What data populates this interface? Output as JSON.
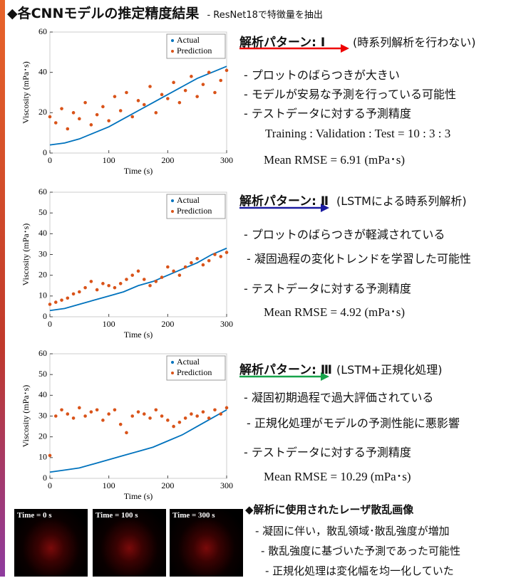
{
  "header": {
    "title": "◆各CNNモデルの推定精度結果",
    "subtitle": "- ResNet18で特徴量を抽出"
  },
  "sections": [
    {
      "heading": "解析パターン: Ⅰ",
      "note": "(時系列解析を行わない)",
      "bullets": [
        "- プロットのばらつきが大きい",
        "- モデルが安易な予測を行っている可能性",
        "- テストデータに対する予測精度"
      ],
      "details": [
        "Training : Validation : Test = 10 : 3 : 3",
        "Mean RMSE = 6.91 (mPa･s)"
      ]
    },
    {
      "heading": "解析パターン: Ⅱ",
      "note": "(LSTMによる時系列解析)",
      "bullets": [
        "- プロットのばらつきが軽減されている",
        "- 凝固過程の変化トレンドを学習した可能性",
        "- テストデータに対する予測精度"
      ],
      "details": [
        "Mean RMSE = 4.92 (mPa･s)"
      ]
    },
    {
      "heading": "解析パターン: Ⅲ",
      "note": "(LSTM+正規化処理)",
      "bullets": [
        "- 凝固初期過程で過大評価されている",
        "- 正規化処理がモデルの予測性能に悪影響",
        "- テストデータに対する予測精度"
      ],
      "details": [
        "Mean RMSE = 10.29 (mPa･s)"
      ]
    }
  ],
  "images": {
    "heading": "◆解析に使用されたレーザ散乱画像",
    "labels": [
      "Time = 0 s",
      "Time = 100 s",
      "Time = 300 s"
    ],
    "bullets": [
      "- 凝固に伴い，散乱領域･散乱強度が増加",
      "- 散乱強度に基づいた予測であった可能性",
      "- 正規化処理は変化幅を均一化していた"
    ]
  },
  "chart_data": [
    {
      "type": "scatter",
      "x_label": "Time (s)",
      "y_label": "Viscosity (mPa･s)",
      "xlim": [
        0,
        300
      ],
      "xticks": [
        0,
        100,
        200,
        300
      ],
      "ylim": [
        0,
        60
      ],
      "yticks": [
        0,
        20,
        40,
        60
      ],
      "legend": "upper right",
      "series": [
        {
          "name": "Actual",
          "color": "#0072bd",
          "mode": "line",
          "x": [
            0,
            25,
            50,
            75,
            100,
            125,
            150,
            175,
            200,
            225,
            250,
            275,
            300
          ],
          "values": [
            4,
            5,
            7,
            10,
            13,
            17,
            21,
            25,
            29,
            33,
            37,
            40,
            43
          ]
        },
        {
          "name": "Prediction",
          "color": "#d95319",
          "mode": "markers",
          "x": [
            0,
            10,
            20,
            30,
            40,
            50,
            60,
            70,
            80,
            90,
            100,
            110,
            120,
            130,
            140,
            150,
            160,
            170,
            180,
            190,
            200,
            210,
            220,
            230,
            240,
            250,
            260,
            270,
            280,
            290,
            300
          ],
          "values": [
            18,
            15,
            22,
            12,
            20,
            17,
            25,
            14,
            19,
            23,
            16,
            28,
            21,
            30,
            18,
            26,
            24,
            33,
            20,
            29,
            27,
            35,
            25,
            31,
            38,
            28,
            34,
            40,
            30,
            36,
            41
          ]
        }
      ]
    },
    {
      "type": "scatter",
      "x_label": "Time (s)",
      "y_label": "Viscosity (mPa･s)",
      "xlim": [
        0,
        300
      ],
      "xticks": [
        0,
        100,
        200,
        300
      ],
      "ylim": [
        0,
        60
      ],
      "yticks": [
        0,
        10,
        20,
        30,
        40,
        50,
        60
      ],
      "legend": "upper right",
      "series": [
        {
          "name": "Actual",
          "color": "#0072bd",
          "mode": "line",
          "x": [
            0,
            25,
            50,
            75,
            100,
            125,
            150,
            175,
            200,
            225,
            250,
            275,
            300
          ],
          "values": [
            3,
            4,
            6,
            8,
            10,
            12,
            15,
            17,
            20,
            23,
            26,
            30,
            33
          ]
        },
        {
          "name": "Prediction",
          "color": "#d95319",
          "mode": "markers",
          "x": [
            0,
            10,
            20,
            30,
            40,
            50,
            60,
            70,
            80,
            90,
            100,
            110,
            120,
            130,
            140,
            150,
            160,
            170,
            180,
            190,
            200,
            210,
            220,
            230,
            240,
            250,
            260,
            270,
            280,
            290,
            300
          ],
          "values": [
            6,
            7,
            8,
            9,
            11,
            12,
            14,
            17,
            13,
            16,
            15,
            14,
            16,
            18,
            20,
            22,
            18,
            15,
            17,
            19,
            24,
            22,
            20,
            24,
            26,
            28,
            25,
            27,
            30,
            29,
            31
          ]
        }
      ]
    },
    {
      "type": "scatter",
      "x_label": "Time (s)",
      "y_label": "Viscosity (mPa･s)",
      "xlim": [
        0,
        300
      ],
      "xticks": [
        0,
        100,
        200,
        300
      ],
      "ylim": [
        0,
        60
      ],
      "yticks": [
        0,
        10,
        20,
        30,
        40,
        50,
        60
      ],
      "legend": "upper right",
      "series": [
        {
          "name": "Actual",
          "color": "#0072bd",
          "mode": "line",
          "x": [
            0,
            25,
            50,
            75,
            100,
            125,
            150,
            175,
            200,
            225,
            250,
            275,
            300
          ],
          "values": [
            3,
            4,
            5,
            7,
            9,
            11,
            13,
            15,
            18,
            21,
            25,
            29,
            33
          ]
        },
        {
          "name": "Prediction",
          "color": "#d95319",
          "mode": "markers",
          "x": [
            0,
            10,
            20,
            30,
            40,
            50,
            60,
            70,
            80,
            90,
            100,
            110,
            120,
            130,
            140,
            150,
            160,
            170,
            180,
            190,
            200,
            210,
            220,
            230,
            240,
            250,
            260,
            270,
            280,
            290,
            300
          ],
          "values": [
            11,
            30,
            33,
            31,
            29,
            34,
            30,
            32,
            33,
            28,
            31,
            33,
            26,
            22,
            30,
            32,
            31,
            29,
            33,
            30,
            28,
            25,
            27,
            29,
            31,
            30,
            32,
            29,
            33,
            31,
            34
          ]
        }
      ]
    }
  ]
}
